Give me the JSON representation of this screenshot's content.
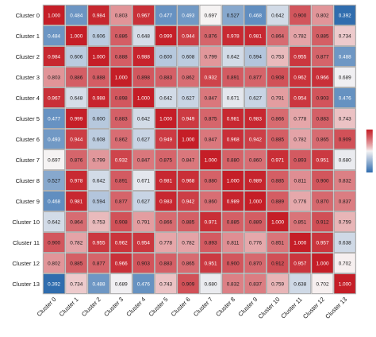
{
  "chart_data": {
    "type": "heatmap",
    "title": "",
    "xlabel": "",
    "ylabel": "",
    "rows": [
      "Cluster 0",
      "Cluster 1",
      "Cluster 2",
      "Cluster 3",
      "Cluster 4",
      "Cluster 5",
      "Cluster 6",
      "Cluster 7",
      "Cluster 8",
      "Cluster 9",
      "Cluster 10",
      "Cluster 11",
      "Cluster 12",
      "Cluster 13"
    ],
    "cols": [
      "Cluster 0",
      "Cluster 1",
      "Cluster 2",
      "Cluster 3",
      "Cluster 4",
      "Cluster 5",
      "Cluster 6",
      "Cluster 7",
      "Cluster 8",
      "Cluster 9",
      "Cluster 10",
      "Cluster 11",
      "Cluster 12",
      "Cluster 13"
    ],
    "values": [
      [
        1.0,
        0.484,
        0.984,
        0.803,
        0.967,
        0.477,
        0.493,
        0.697,
        0.527,
        0.468,
        0.642,
        0.9,
        0.802,
        0.392
      ],
      [
        0.484,
        1.0,
        0.606,
        0.886,
        0.648,
        0.999,
        0.944,
        0.876,
        0.978,
        0.981,
        0.864,
        0.782,
        0.885,
        0.734
      ],
      [
        0.984,
        0.606,
        1.0,
        0.888,
        0.988,
        0.6,
        0.608,
        0.799,
        0.642,
        0.594,
        0.753,
        0.955,
        0.877,
        0.488
      ],
      [
        0.803,
        0.886,
        0.888,
        1.0,
        0.898,
        0.883,
        0.862,
        0.932,
        0.891,
        0.877,
        0.908,
        0.962,
        0.966,
        0.689
      ],
      [
        0.967,
        0.648,
        0.988,
        0.898,
        1.0,
        0.642,
        0.627,
        0.847,
        0.671,
        0.627,
        0.791,
        0.954,
        0.903,
        0.476
      ],
      [
        0.477,
        0.999,
        0.6,
        0.883,
        0.642,
        1.0,
        0.949,
        0.875,
        0.981,
        0.983,
        0.866,
        0.778,
        0.883,
        0.743
      ],
      [
        0.493,
        0.944,
        0.608,
        0.862,
        0.627,
        0.949,
        1.0,
        0.847,
        0.968,
        0.942,
        0.885,
        0.782,
        0.865,
        0.909
      ],
      [
        0.697,
        0.876,
        0.799,
        0.932,
        0.847,
        0.875,
        0.847,
        1.0,
        0.88,
        0.86,
        0.971,
        0.893,
        0.951,
        0.68
      ],
      [
        0.527,
        0.978,
        0.642,
        0.891,
        0.671,
        0.981,
        0.968,
        0.88,
        1.0,
        0.989,
        0.885,
        0.811,
        0.9,
        0.832
      ],
      [
        0.468,
        0.981,
        0.594,
        0.877,
        0.627,
        0.983,
        0.942,
        0.86,
        0.989,
        1.0,
        0.889,
        0.776,
        0.87,
        0.837
      ],
      [
        0.642,
        0.864,
        0.753,
        0.908,
        0.791,
        0.866,
        0.885,
        0.971,
        0.885,
        0.889,
        1.0,
        0.851,
        0.912,
        0.759
      ],
      [
        0.9,
        0.782,
        0.955,
        0.962,
        0.954,
        0.778,
        0.782,
        0.893,
        0.811,
        0.776,
        0.851,
        1.0,
        0.957,
        0.638
      ],
      [
        0.802,
        0.885,
        0.877,
        0.966,
        0.903,
        0.883,
        0.865,
        0.951,
        0.9,
        0.87,
        0.912,
        0.957,
        1.0,
        0.702
      ],
      [
        0.392,
        0.734,
        0.488,
        0.689,
        0.476,
        0.743,
        0.909,
        0.68,
        0.832,
        0.837,
        0.759,
        0.638,
        0.702,
        1.0
      ]
    ],
    "legend": {
      "position": "right",
      "ticks": [
        "1.0",
        "0.8",
        "0.6",
        "0.4"
      ],
      "tick_values": [
        1.0,
        0.8,
        0.6,
        0.4
      ],
      "range": [
        0.39,
        1.0
      ],
      "colors": {
        "low": "#2f6cae",
        "mid": "#f7f4f4",
        "high": "#c51e27"
      },
      "mid_value": 0.7
    },
    "grid": true
  }
}
